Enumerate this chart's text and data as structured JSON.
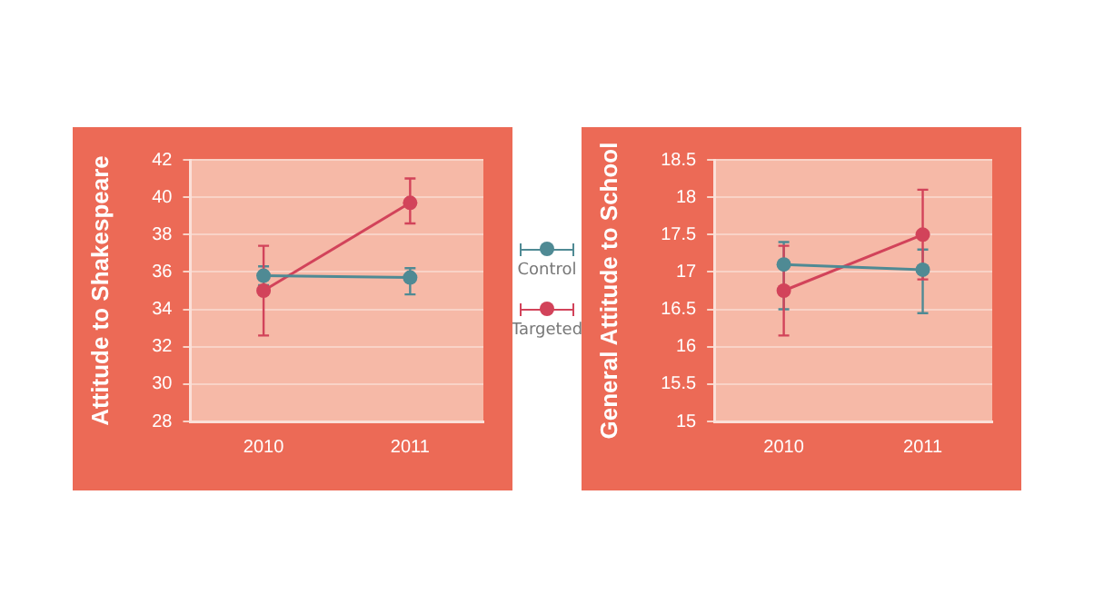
{
  "chart_data": [
    {
      "type": "line",
      "ylabel": "Attitude to Shakespeare",
      "categories": [
        "2010",
        "2011"
      ],
      "ylim": [
        28,
        42
      ],
      "yticks": [
        28,
        30,
        32,
        34,
        36,
        38,
        40,
        42
      ],
      "grid": "y",
      "legend": "right",
      "marker": "circle",
      "series": [
        {
          "name": "Control",
          "color": "#4f8a94",
          "values": [
            35.8,
            35.7
          ],
          "errors": [
            [
              35.3,
              36.3
            ],
            [
              34.8,
              36.2
            ]
          ]
        },
        {
          "name": "Targeted",
          "color": "#d2435a",
          "values": [
            35.0,
            39.7
          ],
          "errors": [
            [
              32.6,
              37.4
            ],
            [
              38.6,
              41.0
            ]
          ]
        }
      ]
    },
    {
      "type": "line",
      "ylabel": "General Attitude to School",
      "categories": [
        "2010",
        "2011"
      ],
      "ylim": [
        15,
        18.5
      ],
      "yticks": [
        15,
        15.5,
        16,
        16.5,
        17,
        17.5,
        18,
        18.5
      ],
      "grid": "y",
      "marker": "circle",
      "series": [
        {
          "color": "#4f8a94",
          "values": [
            17.1,
            17.03
          ],
          "errors": [
            [
              16.5,
              17.4
            ],
            [
              16.45,
              17.3
            ]
          ]
        },
        {
          "color": "#d2435a",
          "values": [
            16.75,
            17.5
          ],
          "errors": [
            [
              16.15,
              17.35
            ],
            [
              16.9,
              18.1
            ]
          ]
        }
      ]
    }
  ]
}
